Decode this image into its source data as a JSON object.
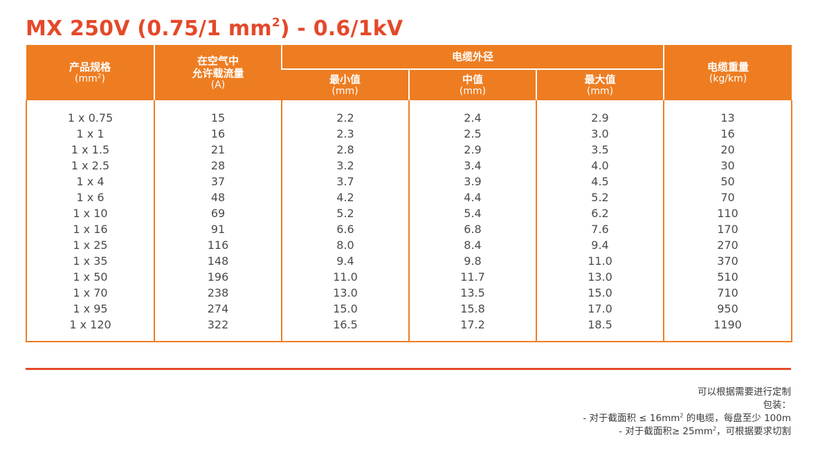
{
  "title": {
    "main": "MX 250V (0.75/1 mm",
    "sup": "2",
    "tail": ") - 0.6/1kV"
  },
  "headers": {
    "spec": {
      "label": "产品规格",
      "unit_prefix": "(mm",
      "unit_sup": "2",
      "unit_suffix": ")"
    },
    "current": {
      "line1": "在空气中",
      "line2": "允许载流量",
      "unit": "(A)"
    },
    "diameter": {
      "label": "电缆外径"
    },
    "min": {
      "label": "最小值",
      "unit": "(mm)"
    },
    "mid": {
      "label": "中值",
      "unit": "(mm)"
    },
    "max": {
      "label": "最大值",
      "unit": "(mm)"
    },
    "weight": {
      "label": "电缆重量",
      "unit": "(kg/km)"
    }
  },
  "columns": {
    "spec": [
      "1 x 0.75",
      "1 x 1",
      "1 x 1.5",
      "1 x 2.5",
      "1 x 4",
      "1 x 6",
      "1 x 10",
      "1 x 16",
      "1 x 25",
      "1 x 35",
      "1 x 50",
      "1 x 70",
      "1 x 95",
      "1 x 120"
    ],
    "current": [
      "15",
      "16",
      "21",
      "28",
      "37",
      "48",
      "69",
      "91",
      "116",
      "148",
      "196",
      "238",
      "274",
      "322"
    ],
    "min": [
      "2.2",
      "2.3",
      "2.8",
      "3.2",
      "3.7",
      "4.2",
      "5.2",
      "6.6",
      "8.0",
      "9.4",
      "11.0",
      "13.0",
      "15.0",
      "16.5"
    ],
    "mid": [
      "2.4",
      "2.5",
      "2.9",
      "3.4",
      "3.9",
      "4.4",
      "5.4",
      "6.8",
      "8.4",
      "9.8",
      "11.7",
      "13.5",
      "15.8",
      "17.2"
    ],
    "max": [
      "2.9",
      "3.0",
      "3.5",
      "4.0",
      "4.5",
      "5.2",
      "6.2",
      "7.6",
      "9.4",
      "11.0",
      "13.0",
      "15.0",
      "17.0",
      "18.5"
    ],
    "weight": [
      "13",
      "16",
      "20",
      "30",
      "50",
      "70",
      "110",
      "170",
      "270",
      "370",
      "510",
      "710",
      "950",
      "1190"
    ]
  },
  "notes": {
    "line1": "可以根据需要进行定制",
    "line2": "包装：",
    "line3_prefix": "- 对于截面积 ≤ 16mm",
    "line3_sup": "2",
    "line3_suffix": " 的电缆，每盘至少 100m",
    "line4_prefix": "- 对于截面积≥ 25mm",
    "line4_sup": "2",
    "line4_suffix": "，可根据要求切割"
  },
  "colors": {
    "title": "#e4492a",
    "header_bg": "#ee7d22",
    "rule": "#e4492a"
  }
}
